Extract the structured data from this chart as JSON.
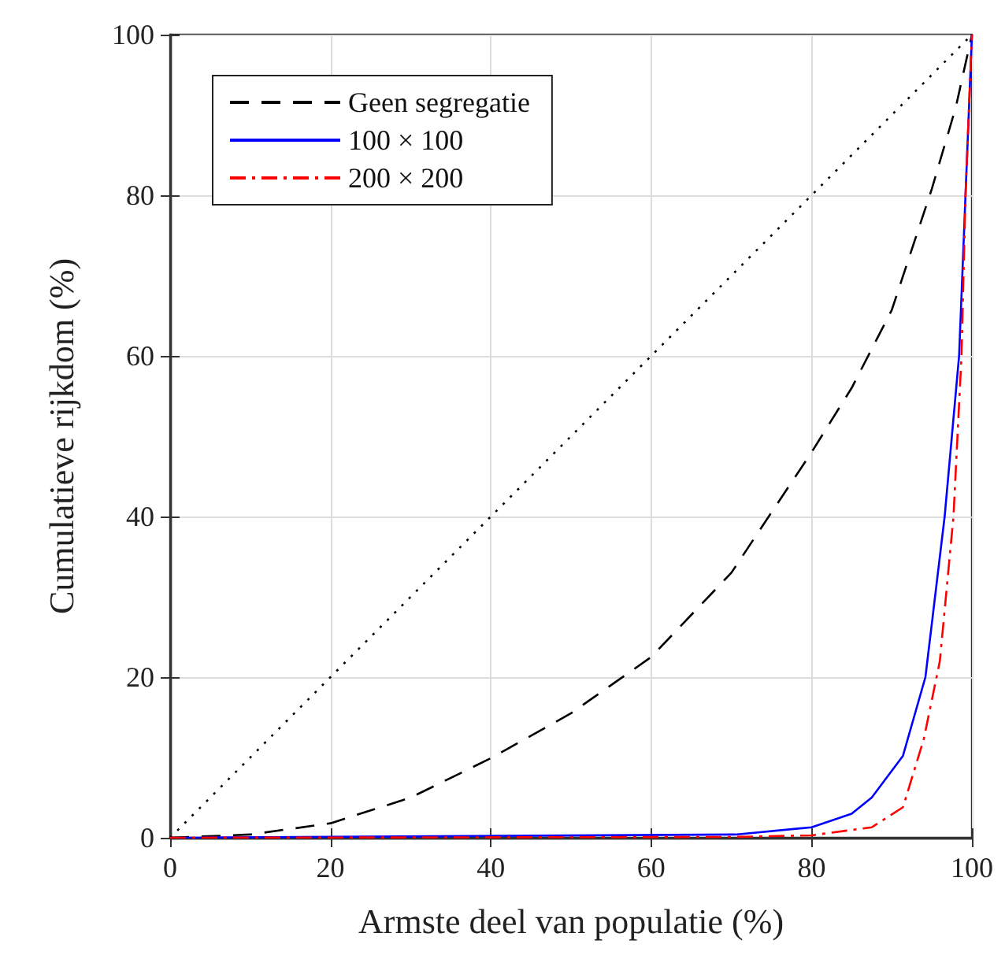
{
  "chart_data": {
    "type": "line",
    "xlabel": "Armste deel van populatie (%)",
    "ylabel": "Cumulatieve rijkdom (%)",
    "xlim": [
      0,
      100
    ],
    "xticks": [
      0,
      20,
      40,
      60,
      80,
      100
    ],
    "ylim": [
      0,
      100
    ],
    "yticks": [
      0,
      20,
      40,
      60,
      80,
      100
    ],
    "grid": true,
    "legend": "top left",
    "marker": "none",
    "series": [
      {
        "color": "#000000",
        "line_style": "dotted",
        "x": [
          0,
          100
        ],
        "values": [
          0,
          100
        ]
      },
      {
        "name": "Geen segregatie",
        "color": "#000000",
        "line_style": "dashed",
        "x": [
          0,
          10,
          20,
          30,
          40,
          50,
          60,
          70,
          80,
          85,
          90,
          95,
          98,
          100
        ],
        "values": [
          0,
          0.4,
          1.8,
          5,
          9.9,
          15.5,
          22.5,
          33,
          48,
          56,
          65.7,
          80.8,
          91,
          100
        ]
      },
      {
        "name": "100 × 100",
        "color": "#0000ff",
        "line_style": "solid",
        "x": [
          0,
          70.5,
          80,
          85,
          87.5,
          91.4,
          94.2,
          96.6,
          98.4,
          99.2,
          100
        ],
        "values": [
          0,
          0.4,
          1.3,
          3,
          5,
          10.2,
          20,
          40,
          60,
          80,
          100
        ]
      },
      {
        "name": "200 × 200",
        "color": "#ff0000",
        "line_style": "dashed",
        "x": [
          0,
          70,
          80,
          87.5,
          91.4,
          94,
          96,
          97.7,
          98.7,
          99.2,
          100
        ],
        "values": [
          0,
          0.1,
          0.3,
          1.3,
          3.8,
          12.3,
          22,
          40,
          60,
          80,
          100
        ]
      }
    ]
  }
}
